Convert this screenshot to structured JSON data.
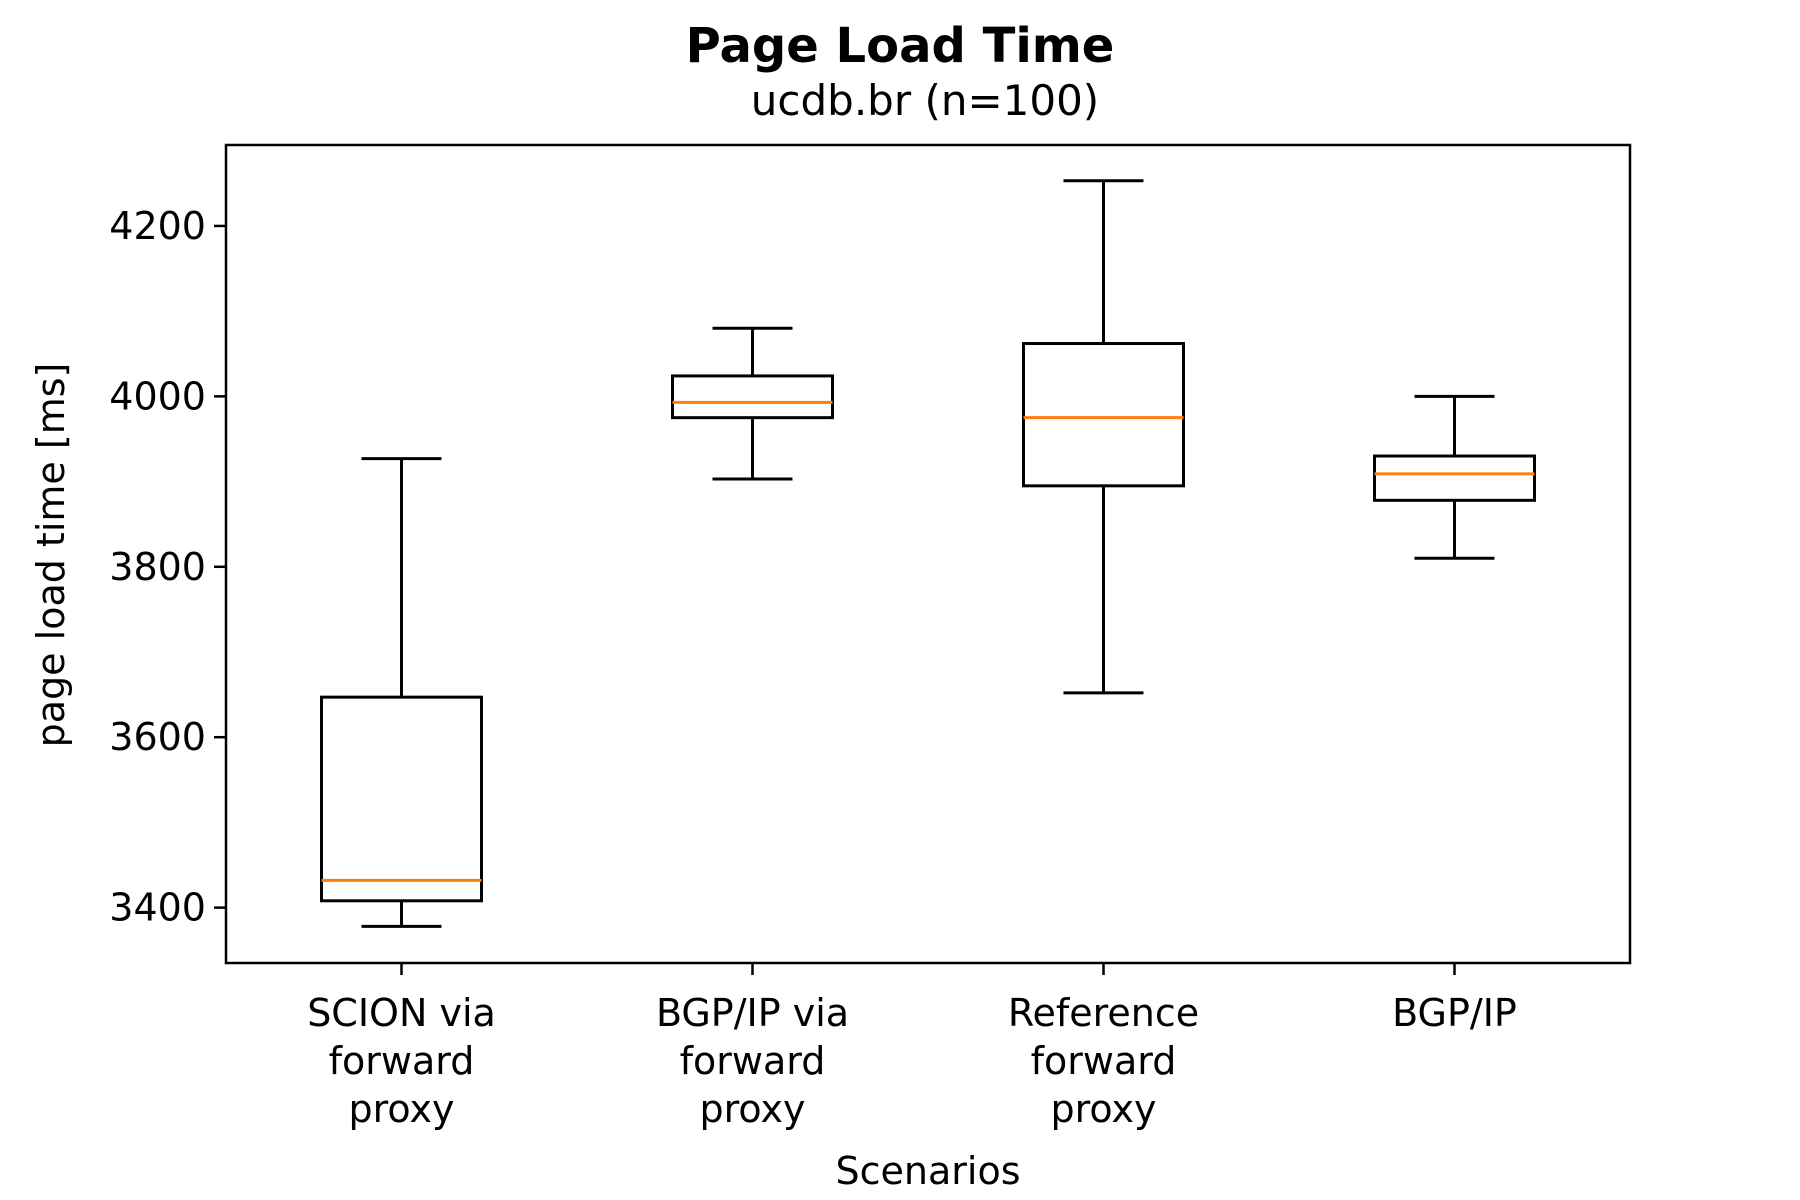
{
  "chart_data": {
    "type": "box",
    "title": "Page Load Time",
    "subtitle": "ucdb.br (n=100)",
    "xlabel": "Scenarios",
    "ylabel": "page load time [ms]",
    "ylim": [
      3335,
      4295
    ],
    "yticks": [
      3400,
      3600,
      3800,
      4000,
      4200
    ],
    "ytick_labels": [
      "3400",
      "3600",
      "3800",
      "4000",
      "4200"
    ],
    "grid": false,
    "colors": {
      "box": "#000000",
      "median": "#ff7f0e"
    },
    "categories": [
      {
        "label_lines": [
          "SCION via",
          "forward",
          "proxy"
        ],
        "whisker_low": 3378,
        "q1": 3408,
        "median": 3432,
        "q3": 3647,
        "whisker_high": 3927
      },
      {
        "label_lines": [
          "BGP/IP via",
          "forward",
          "proxy"
        ],
        "whisker_low": 3903,
        "q1": 3975,
        "median": 3993,
        "q3": 4024,
        "whisker_high": 4080
      },
      {
        "label_lines": [
          "Reference",
          "forward",
          "proxy"
        ],
        "whisker_low": 3652,
        "q1": 3895,
        "median": 3975,
        "q3": 4062,
        "whisker_high": 4253
      },
      {
        "label_lines": [
          "BGP/IP"
        ],
        "whisker_low": 3810,
        "q1": 3878,
        "median": 3909,
        "q3": 3930,
        "whisker_high": 4000
      }
    ]
  }
}
